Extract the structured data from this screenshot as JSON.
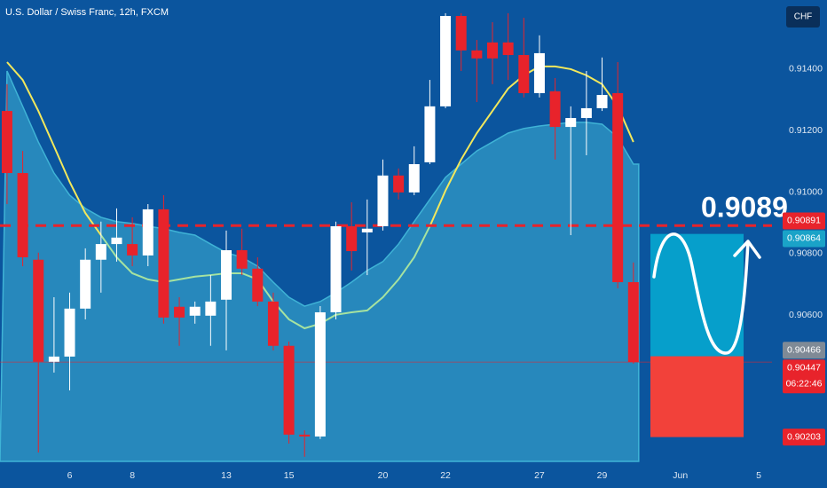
{
  "chart_data": {
    "type": "candlestick",
    "title": "U.S. Dollar / Swiss Franc, 12h, FXCM",
    "currency_button": "CHF",
    "annotation": 0.9089,
    "up_color": "#ffffff",
    "down_color": "#e8232b",
    "x": [
      0,
      1,
      2,
      3,
      4,
      5,
      6,
      7,
      8,
      9,
      10,
      11,
      12,
      13,
      14,
      15,
      16,
      17,
      18,
      19,
      20,
      21,
      22,
      23,
      24,
      25,
      26,
      27,
      28,
      29,
      30,
      31,
      32,
      33,
      34,
      35,
      36,
      37,
      38,
      39,
      40
    ],
    "open": [
      0.91264,
      0.91062,
      0.9078,
      0.90448,
      0.90465,
      0.90621,
      0.9078,
      0.90831,
      0.90831,
      0.90794,
      0.90944,
      0.90627,
      0.90598,
      0.90598,
      0.9065,
      0.90811,
      0.90751,
      0.90644,
      0.905,
      0.90211,
      0.90205,
      0.90609,
      0.90889,
      0.90869,
      0.90889,
      0.91054,
      0.90999,
      0.91097,
      0.91279,
      0.91573,
      0.91461,
      0.91487,
      0.91487,
      0.91446,
      0.91322,
      0.91328,
      0.91212,
      0.91241,
      0.91273,
      0.91322,
      0.90707
    ],
    "high": [
      0.91351,
      0.91134,
      0.90803,
      0.90658,
      0.90673,
      0.90817,
      0.90904,
      0.90947,
      0.90918,
      0.90961,
      0.9099,
      0.90658,
      0.90644,
      0.9073,
      0.90875,
      0.90881,
      0.90788,
      0.90673,
      0.90514,
      0.90225,
      0.90629,
      0.90904,
      0.90967,
      0.90976,
      0.91106,
      0.91077,
      0.91149,
      0.91365,
      0.91582,
      0.91582,
      0.91495,
      0.91553,
      0.91582,
      0.91567,
      0.9151,
      0.91371,
      0.91279,
      0.91394,
      0.91438,
      0.91423,
      0.90771
    ],
    "low": [
      0.90961,
      0.90759,
      0.90153,
      0.90413,
      0.90355,
      0.90586,
      0.90673,
      0.90774,
      0.90759,
      0.90759,
      0.90572,
      0.905,
      0.90572,
      0.905,
      0.90485,
      0.9073,
      0.90629,
      0.90485,
      0.90182,
      0.90139,
      0.90197,
      0.90586,
      0.90745,
      0.9073,
      0.90875,
      0.90976,
      0.9099,
      0.91091,
      0.91273,
      0.91394,
      0.91293,
      0.91351,
      0.91365,
      0.91308,
      0.91308,
      0.91106,
      0.9086,
      0.9112,
      0.91264,
      0.90687,
      0.90442
    ],
    "close": [
      0.91062,
      0.90788,
      0.90448,
      0.90465,
      0.90621,
      0.9078,
      0.90831,
      0.90852,
      0.90794,
      0.90944,
      0.90592,
      0.90592,
      0.90627,
      0.90644,
      0.90811,
      0.90751,
      0.90644,
      0.905,
      0.90211,
      0.90205,
      0.90609,
      0.90889,
      0.90808,
      0.90881,
      0.91054,
      0.90999,
      0.91091,
      0.91279,
      0.91573,
      0.91461,
      0.91435,
      0.91435,
      0.91446,
      0.91322,
      0.91452,
      0.91212,
      0.91241,
      0.91273,
      0.91316,
      0.90707,
      0.90447
    ],
    "lines": [
      {
        "color": "#f2e85c",
        "values": [
          0.91423,
          0.91365,
          0.91264,
          0.91149,
          0.91033,
          0.90932,
          0.9086,
          null,
          null,
          null,
          null,
          null,
          null,
          null,
          null,
          null,
          null,
          null,
          null,
          null,
          null,
          null,
          null,
          null,
          null,
          null,
          null,
          0.90889,
          0.91005,
          0.91106,
          0.91192,
          0.91264,
          0.91337,
          0.9138,
          0.91409,
          0.91409,
          0.914,
          0.9138,
          0.91351,
          0.91279,
          0.91163
        ]
      },
      {
        "color": "#a6e3a0",
        "values": [
          null,
          null,
          null,
          null,
          null,
          null,
          0.9086,
          0.90788,
          0.90736,
          0.90716,
          0.90707,
          0.90716,
          0.90725,
          0.9073,
          0.90736,
          0.90736,
          0.90716,
          0.90644,
          0.90586,
          0.90557,
          0.90572,
          0.90601,
          0.90609,
          0.90615,
          0.90658,
          0.90716,
          0.90788,
          0.90889,
          null,
          null,
          null,
          null,
          null,
          null,
          null,
          null,
          null,
          null,
          null,
          null,
          null
        ]
      }
    ],
    "band": {
      "color": "#3fb3d6",
      "values": [
        0.91394,
        0.91279,
        0.91163,
        0.91062,
        0.9099,
        0.90947,
        0.90918,
        0.90904,
        0.90898,
        0.90889,
        0.90881,
        0.90869,
        0.9086,
        0.90831,
        0.90803,
        0.90788,
        0.90759,
        0.90707,
        0.90658,
        0.90629,
        0.90644,
        0.90673,
        0.90707,
        0.90745,
        0.90774,
        0.90831,
        0.90904,
        0.90976,
        0.91048,
        0.91091,
        0.91134,
        0.91163,
        0.91192,
        0.91207,
        0.91215,
        0.91221,
        0.91227,
        0.91227,
        0.91221,
        0.91178,
        0.91091
      ]
    },
    "price_labels": [
      {
        "value": 0.90891,
        "color": "#e8232b"
      },
      {
        "value": 0.90864,
        "color": "#1aa3c8"
      },
      {
        "value": 0.90466,
        "color": "#7f8a96"
      },
      {
        "value": 0.90447,
        "color": "#e8232b",
        "countdown": "06:22:46"
      },
      {
        "value": 0.90203,
        "color": "#e8232b"
      }
    ],
    "xlim": [
      -0.45,
      48.85
    ],
    "ylim": [
      0.90124,
      0.91625
    ],
    "xticks": [
      {
        "value": 4,
        "label": "6"
      },
      {
        "value": 8,
        "label": "8"
      },
      {
        "value": 14,
        "label": "13"
      },
      {
        "value": 18,
        "label": "15"
      },
      {
        "value": 24,
        "label": "20"
      },
      {
        "value": 28,
        "label": "22"
      },
      {
        "value": 34,
        "label": "27"
      },
      {
        "value": 38,
        "label": "29"
      },
      {
        "value": 43,
        "label": "Jun"
      },
      {
        "value": 48,
        "label": "5"
      }
    ],
    "yticks": [
      {
        "value": 0.906,
        "label": "0.90600"
      },
      {
        "value": 0.908,
        "label": "0.90800"
      },
      {
        "value": 0.91,
        "label": "0.91000"
      },
      {
        "value": 0.912,
        "label": "0.91200"
      },
      {
        "value": 0.914,
        "label": "0.91400"
      }
    ]
  }
}
